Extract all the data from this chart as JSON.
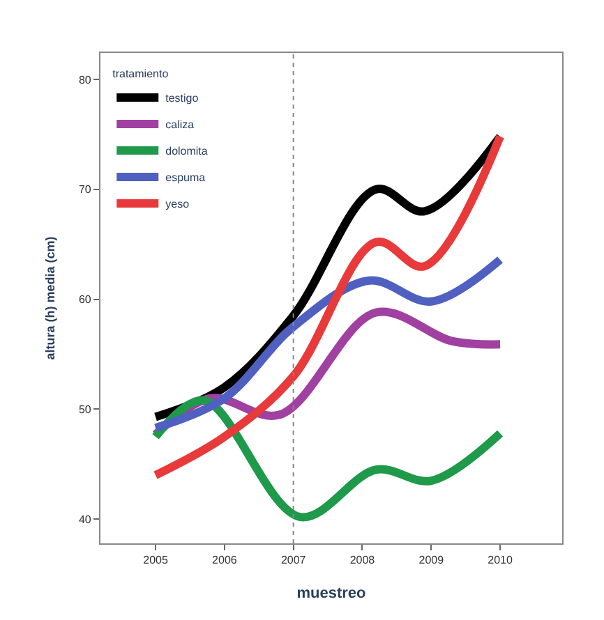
{
  "chart_data": {
    "type": "line",
    "xlabel": "muestreo",
    "ylabel": "altura (h) media (cm)",
    "legend_title": "tratamiento",
    "xlim": [
      2004.2,
      2010.9
    ],
    "xticks": [
      2005,
      2006,
      2007,
      2008,
      2009,
      2010
    ],
    "ylim": [
      37.8,
      82.4
    ],
    "yticks": [
      40,
      50,
      60,
      70,
      80
    ],
    "legend": "top left",
    "line_style": "solid",
    "marker": "none",
    "ref_lines": [
      {
        "axis": "x",
        "value": 2007,
        "color": "#888888",
        "line_style": "dotted"
      }
    ],
    "series": [
      {
        "name": "testigo",
        "color": "#000000",
        "x": [
          2005,
          2006,
          2007,
          2008.2,
          2008.9,
          2010
        ],
        "values": [
          49.3,
          52,
          58.5,
          70,
          68,
          74.8
        ]
      },
      {
        "name": "caliza",
        "color": "#a040a0",
        "x": [
          2005,
          2005.8,
          2006.8,
          2008.2,
          2009.3,
          2010
        ],
        "values": [
          47.7,
          51,
          49.5,
          58.8,
          56.2,
          55.9
        ]
      },
      {
        "name": "dolomita",
        "color": "#1e9a4a",
        "x": [
          2005,
          2005.7,
          2007.1,
          2008.2,
          2009,
          2010
        ],
        "values": [
          47.5,
          50.8,
          40.2,
          44.5,
          43.5,
          47.8
        ]
      },
      {
        "name": "espuma",
        "color": "#5060c0",
        "x": [
          2005,
          2006,
          2007,
          2008.1,
          2009,
          2010
        ],
        "values": [
          48.3,
          51,
          57.5,
          61.7,
          59.8,
          63.6
        ]
      },
      {
        "name": "yeso",
        "color": "#e83a3a",
        "x": [
          2005,
          2006,
          2007,
          2008.2,
          2008.9,
          2010
        ],
        "values": [
          44,
          47.5,
          53,
          65.2,
          63,
          74.8
        ]
      }
    ]
  }
}
